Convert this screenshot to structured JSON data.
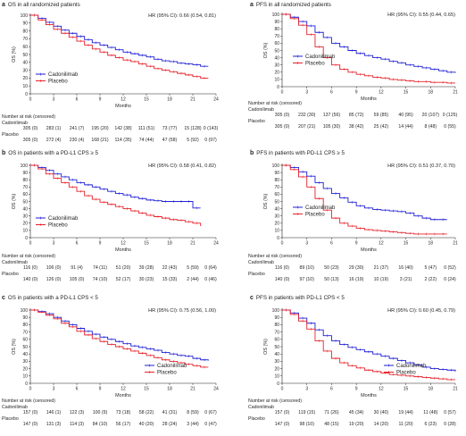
{
  "chart_data": [
    {
      "id": "os-all",
      "type": "line",
      "letter": "a",
      "title": "OS in all randomized  patients",
      "hr_text": "HR (95% CI): 0.66 (0.54, 0.81)",
      "ylabel": "OS (%)",
      "xlabel": "Months",
      "xlim": [
        0,
        24
      ],
      "ylim": [
        0,
        100
      ],
      "xticks": [
        0,
        3,
        6,
        9,
        12,
        15,
        18,
        21,
        24
      ],
      "yticks": [
        0,
        10,
        20,
        30,
        40,
        50,
        60,
        70,
        80,
        90,
        100
      ],
      "legend_position": "bottom-left",
      "series": [
        {
          "name": "Cadonilimab",
          "color": "#1f1fd6",
          "x": [
            0,
            1,
            2,
            3,
            4,
            5,
            6,
            7,
            8,
            9,
            10,
            11,
            12,
            13,
            14,
            15,
            16,
            17,
            18,
            19,
            20,
            21,
            22,
            23
          ],
          "y": [
            100,
            96,
            91,
            86,
            81,
            77,
            73,
            69,
            65,
            62,
            59,
            56,
            53,
            51,
            49,
            47,
            44,
            42,
            41,
            39,
            38,
            37,
            35,
            35
          ]
        },
        {
          "name": "Placebo",
          "color": "#e8202a",
          "x": [
            0,
            1,
            2,
            3,
            4,
            5,
            6,
            7,
            8,
            9,
            10,
            11,
            12,
            13,
            14,
            15,
            16,
            17,
            18,
            19,
            20,
            21,
            22,
            23
          ],
          "y": [
            100,
            94,
            88,
            82,
            77,
            72,
            67,
            62,
            57,
            53,
            49,
            46,
            43,
            41,
            38,
            35,
            32,
            30,
            28,
            26,
            24,
            22,
            20,
            20
          ]
        }
      ],
      "risk": {
        "header": "Number at risk (censored)",
        "rows": [
          {
            "label": "Cadonilimab",
            "values": [
              "305 (0)",
              "283 (1)",
              "241 (7)",
              "195 (20)",
              "142 (38)",
              "111 (51)",
              "73 (77)",
              "15 (128)",
              "0 (143)"
            ]
          },
          {
            "label": "Placebo",
            "values": [
              "305 (0)",
              "272 (4)",
              "230 (4)",
              "168 (21)",
              "114 (35)",
              "74 (44)",
              "47 (58)",
              "5 (92)",
              "0 (97)"
            ]
          }
        ]
      }
    },
    {
      "id": "os-cps-ge5",
      "type": "line",
      "letter": "b",
      "title": "OS in patients with a PD-L1 CPS ≥ 5",
      "hr_text": "HR (95% CI): 0.58 (0.41, 0.82)",
      "ylabel": "OS (%)",
      "xlabel": "Months",
      "xlim": [
        0,
        24
      ],
      "ylim": [
        0,
        100
      ],
      "xticks": [
        0,
        3,
        6,
        9,
        12,
        15,
        18,
        21,
        24
      ],
      "yticks": [
        0,
        10,
        20,
        30,
        40,
        50,
        60,
        70,
        80,
        90,
        100
      ],
      "legend_position": "bottom-left",
      "series": [
        {
          "name": "Cadonilimab",
          "color": "#1f1fd6",
          "x": [
            0,
            1,
            2,
            3,
            4,
            5,
            6,
            7,
            8,
            9,
            10,
            11,
            12,
            13,
            14,
            15,
            16,
            17,
            18,
            19,
            20,
            21,
            22
          ],
          "y": [
            100,
            97,
            93,
            88,
            84,
            80,
            76,
            73,
            70,
            67,
            64,
            61,
            59,
            56,
            54,
            52,
            51,
            50,
            50,
            50,
            50,
            41,
            41
          ]
        },
        {
          "name": "Placebo",
          "color": "#e8202a",
          "x": [
            0,
            1,
            2,
            3,
            4,
            5,
            6,
            7,
            8,
            9,
            10,
            11,
            12,
            13,
            14,
            15,
            16,
            17,
            18,
            19,
            20,
            21,
            22
          ],
          "y": [
            100,
            95,
            88,
            82,
            76,
            70,
            64,
            58,
            53,
            49,
            46,
            43,
            40,
            37,
            34,
            31,
            29,
            27,
            25,
            24,
            22,
            20,
            16
          ]
        }
      ],
      "risk": {
        "header": "Number at risk (censored)",
        "rows": [
          {
            "label": "Cadonilimab",
            "values": [
              "116 (0)",
              "106 (0)",
              "91 (4)",
              "74 (11)",
              "51 (20)",
              "39 (28)",
              "22 (43)",
              "5 (59)",
              "0 (64)"
            ]
          },
          {
            "label": "Placebo",
            "values": [
              "140 (0)",
              "126 (0)",
              "105 (0)",
              "74 (10)",
              "52 (17)",
              "30 (23)",
              "15 (33)",
              "2 (44)",
              "0 (46)"
            ]
          }
        ]
      }
    },
    {
      "id": "os-cps-lt5",
      "type": "line",
      "letter": "c",
      "title": "OS in patients with a PD-L1 CPS < 5",
      "hr_text": "HR (95% CI): 0.75 (0.56, 1.00)",
      "ylabel": "OS (%)",
      "xlabel": "Months",
      "xlim": [
        0,
        24
      ],
      "ylim": [
        0,
        100
      ],
      "xticks": [
        0,
        3,
        6,
        9,
        12,
        15,
        18,
        21,
        24
      ],
      "yticks": [
        0,
        10,
        20,
        30,
        40,
        50,
        60,
        70,
        80,
        90,
        100
      ],
      "legend_position": "bottom-right",
      "series": [
        {
          "name": "Cadonilimab",
          "color": "#1f1fd6",
          "x": [
            0,
            1,
            2,
            3,
            4,
            5,
            6,
            7,
            8,
            9,
            10,
            11,
            12,
            13,
            14,
            15,
            16,
            17,
            18,
            19,
            20,
            21,
            22,
            23
          ],
          "y": [
            100,
            98,
            95,
            90,
            85,
            80,
            75,
            71,
            67,
            63,
            60,
            57,
            54,
            51,
            49,
            47,
            45,
            42,
            40,
            38,
            37,
            34,
            32,
            31
          ]
        },
        {
          "name": "Placebo",
          "color": "#e8202a",
          "x": [
            0,
            1,
            2,
            3,
            4,
            5,
            6,
            7,
            8,
            9,
            10,
            11,
            12,
            13,
            14,
            15,
            16,
            17,
            18,
            19,
            20,
            21,
            22,
            23
          ],
          "y": [
            100,
            97,
            93,
            88,
            82,
            77,
            71,
            66,
            61,
            57,
            53,
            50,
            47,
            44,
            41,
            38,
            35,
            32,
            30,
            28,
            26,
            24,
            22,
            22
          ]
        }
      ],
      "risk": {
        "header": "Number at risk (censored)",
        "rows": [
          {
            "label": "Cadonilimab",
            "values": [
              "157 (0)",
              "146 (1)",
              "122 (3)",
              "100 (9)",
              "73 (18)",
              "58 (22)",
              "41 (31)",
              "8 (59)",
              "0 (67)"
            ]
          },
          {
            "label": "Placebo",
            "values": [
              "147 (0)",
              "131 (3)",
              "114 (3)",
              "84 (10)",
              "56 (17)",
              "40 (20)",
              "28 (24)",
              "3 (44)",
              "0 (47)"
            ]
          }
        ]
      }
    },
    {
      "id": "pfs-all",
      "type": "line",
      "letter": "a",
      "title": "PFS in all randomized patients",
      "hr_text": "HR (95% CI): 0.55 (0.44, 0.65)",
      "ylabel": "OS (%)",
      "xlabel": "Months",
      "xlim": [
        0,
        21
      ],
      "ylim": [
        0,
        100
      ],
      "xticks": [
        0,
        3,
        6,
        9,
        12,
        15,
        18,
        21
      ],
      "yticks": [
        0,
        10,
        20,
        30,
        40,
        50,
        60,
        70,
        80,
        90,
        100
      ],
      "legend_position": "middle-left",
      "series": [
        {
          "name": "Cadonilimab",
          "color": "#1f1fd6",
          "x": [
            0,
            1,
            2,
            3,
            4,
            5,
            6,
            7,
            8,
            9,
            10,
            11,
            12,
            13,
            14,
            15,
            16,
            17,
            18,
            19,
            20,
            21
          ],
          "y": [
            100,
            96,
            90,
            84,
            75,
            68,
            60,
            55,
            50,
            46,
            43,
            40,
            38,
            35,
            33,
            30,
            28,
            26,
            24,
            22,
            20,
            19
          ]
        },
        {
          "name": "Placebo",
          "color": "#e8202a",
          "x": [
            0,
            1,
            2,
            3,
            4,
            5,
            6,
            7,
            8,
            9,
            10,
            11,
            12,
            13,
            14,
            15,
            16,
            17,
            18,
            19,
            20,
            21
          ],
          "y": [
            100,
            94,
            85,
            72,
            55,
            40,
            30,
            24,
            20,
            17,
            15,
            13,
            12,
            10,
            9,
            8,
            7,
            7,
            6,
            6,
            5,
            5
          ]
        }
      ],
      "risk": {
        "header": "Number at risk (censored)",
        "rows": [
          {
            "label": "Cadonilimab",
            "values": [
              "305 (0)",
              "232 (30)",
              "137 (56)",
              "85 (72)",
              "59 (85)",
              "40 (95)",
              "20 (107)",
              "0 (125)"
            ]
          },
          {
            "label": "Placebo",
            "values": [
              "305 (0)",
              "207 (21)",
              "105 (30)",
              "38 (42)",
              "25 (42)",
              "14 (44)",
              "8 (48)",
              "0 (55)"
            ]
          }
        ]
      }
    },
    {
      "id": "pfs-cps-ge5",
      "type": "line",
      "letter": "b",
      "title": "PFS in patients with PD-L1 CPS ≥ 5",
      "hr_text": "HR (95% CI): 0.51 (0.37, 0.70)",
      "ylabel": "OS (%)",
      "xlabel": "Months",
      "xlim": [
        0,
        21
      ],
      "ylim": [
        0,
        100
      ],
      "xticks": [
        0,
        3,
        6,
        9,
        12,
        15,
        18,
        21
      ],
      "yticks": [
        0,
        10,
        20,
        30,
        40,
        50,
        60,
        70,
        80,
        90,
        100
      ],
      "legend_position": "middle-left",
      "series": [
        {
          "name": "Cadonilimab",
          "color": "#1f1fd6",
          "x": [
            0,
            1,
            2,
            3,
            4,
            5,
            6,
            7,
            8,
            9,
            10,
            11,
            12,
            13,
            14,
            15,
            16,
            17,
            18,
            19,
            20
          ],
          "y": [
            100,
            97,
            91,
            85,
            76,
            68,
            61,
            55,
            49,
            44,
            41,
            39,
            38,
            37,
            36,
            34,
            30,
            27,
            25,
            25,
            25
          ]
        },
        {
          "name": "Placebo",
          "color": "#e8202a",
          "x": [
            0,
            1,
            2,
            3,
            4,
            5,
            6,
            7,
            8,
            9,
            10,
            11,
            12,
            13,
            14,
            15,
            16,
            17,
            18,
            19,
            20
          ],
          "y": [
            100,
            94,
            84,
            70,
            54,
            38,
            27,
            20,
            16,
            13,
            11,
            10,
            9,
            8,
            7,
            6,
            5,
            5,
            5,
            5,
            5
          ]
        }
      ],
      "risk": {
        "header": "Number at risk (censored)",
        "rows": [
          {
            "label": "Cadonilimab",
            "values": [
              "116 (0)",
              "89 (10)",
              "50 (23)",
              "29 (30)",
              "21 (37)",
              "16 (40)",
              "5 (47)",
              "0 (52)"
            ]
          },
          {
            "label": "Placebo",
            "values": [
              "140 (0)",
              "97 (10)",
              "50 (13)",
              "16 (19)",
              "10 (19)",
              "3 (21)",
              "2 (22)",
              "0 (24)"
            ]
          }
        ]
      }
    },
    {
      "id": "pfs-cps-lt5",
      "type": "line",
      "letter": "c",
      "title": "PFS in patients with PD-L1 CPS < 5",
      "hr_text": "HR (95% CI): 0.60 (0.45, 0.79)",
      "ylabel": "OS (%)",
      "xlabel": "Months",
      "xlim": [
        0,
        21
      ],
      "ylim": [
        0,
        100
      ],
      "xticks": [
        0,
        3,
        6,
        9,
        12,
        15,
        18,
        21
      ],
      "yticks": [
        0,
        10,
        20,
        30,
        40,
        50,
        60,
        70,
        80,
        90,
        100
      ],
      "legend_position": "bottom-right",
      "series": [
        {
          "name": "Cadonilimab",
          "color": "#1f1fd6",
          "x": [
            0,
            1,
            2,
            3,
            4,
            5,
            6,
            7,
            8,
            9,
            10,
            11,
            12,
            13,
            14,
            15,
            16,
            17,
            18,
            19,
            20,
            21
          ],
          "y": [
            100,
            96,
            89,
            82,
            73,
            65,
            58,
            53,
            49,
            46,
            43,
            40,
            37,
            34,
            31,
            28,
            25,
            22,
            20,
            19,
            18,
            16
          ]
        },
        {
          "name": "Placebo",
          "color": "#e8202a",
          "x": [
            0,
            1,
            2,
            3,
            4,
            5,
            6,
            7,
            8,
            9,
            10,
            11,
            12,
            13,
            14,
            15,
            16,
            17,
            18,
            19,
            20,
            21
          ],
          "y": [
            100,
            94,
            85,
            74,
            58,
            44,
            34,
            28,
            24,
            21,
            18,
            16,
            14,
            12,
            11,
            10,
            9,
            8,
            7,
            6,
            5,
            5
          ]
        }
      ],
      "risk": {
        "header": "Number at risk (censored)",
        "rows": [
          {
            "label": "Cadonilimab",
            "values": [
              "157 (0)",
              "119 (15)",
              "71 (26)",
              "45 (34)",
              "30 (40)",
              "19 (44)",
              "11 (48)",
              "0 (57)"
            ]
          },
          {
            "label": "Placebo",
            "values": [
              "147 (0)",
              "98 (10)",
              "48 (15)",
              "19 (20)",
              "14 (20)",
              "11 (20)",
              "6 (23)",
              "0 (28)"
            ]
          }
        ]
      }
    }
  ]
}
